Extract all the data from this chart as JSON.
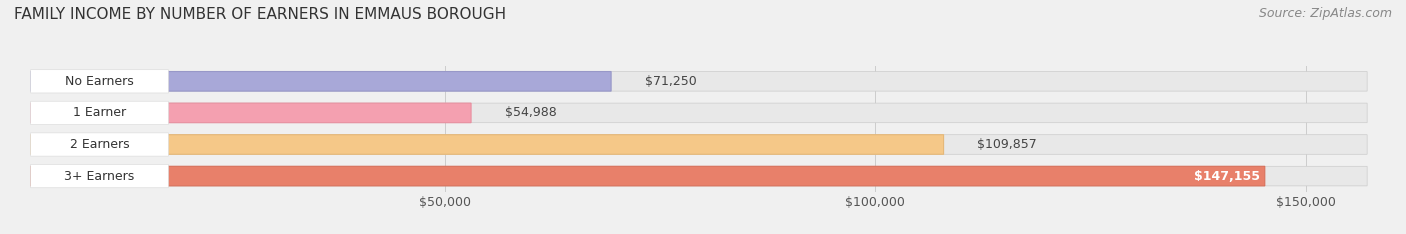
{
  "title": "FAMILY INCOME BY NUMBER OF EARNERS IN EMMAUS BOROUGH",
  "source": "Source: ZipAtlas.com",
  "categories": [
    "No Earners",
    "1 Earner",
    "2 Earners",
    "3+ Earners"
  ],
  "values": [
    71250,
    54988,
    109857,
    147155
  ],
  "bar_colors": [
    "#a8a8d8",
    "#f4a0b0",
    "#f5c888",
    "#e8806a"
  ],
  "bar_edge_colors": [
    "#9898c8",
    "#e890a0",
    "#e5b878",
    "#d8705a"
  ],
  "label_colors": [
    "#333333",
    "#333333",
    "#333333",
    "#ffffff"
  ],
  "value_labels": [
    "$71,250",
    "$54,988",
    "$109,857",
    "$147,155"
  ],
  "x_ticks": [
    50000,
    100000,
    150000
  ],
  "x_tick_labels": [
    "$50,000",
    "$100,000",
    "$150,000"
  ],
  "xlim": [
    0,
    160000
  ],
  "background_color": "#f0f0f0",
  "bar_background_color": "#e8e8e8",
  "title_fontsize": 11,
  "source_fontsize": 9,
  "bar_label_fontsize": 9,
  "value_label_fontsize": 9,
  "tick_fontsize": 9,
  "bar_height": 0.62,
  "figsize": [
    14.06,
    2.34
  ],
  "dpi": 100
}
